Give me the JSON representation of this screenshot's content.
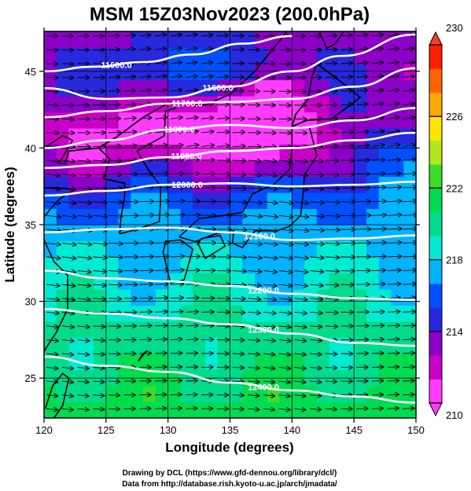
{
  "chart_data": {
    "type": "heatmap",
    "title": "MSM 15Z03Nov2023 (200.0hPa)",
    "xlabel": "Longitude (degrees)",
    "ylabel": "Latitude  (degrees)",
    "xlim": [
      120,
      150
    ],
    "ylim": [
      22.4,
      47.6
    ],
    "xticks": [
      120,
      125,
      130,
      135,
      140,
      145,
      150
    ],
    "yticks": [
      25,
      30,
      35,
      40,
      45
    ],
    "colorbar": {
      "range": [
        210,
        230
      ],
      "ticks": [
        210,
        214,
        218,
        222,
        226,
        230
      ],
      "colors": [
        "#ff3cff",
        "#c800c8",
        "#8c00c8",
        "#2828dc",
        "#0050ff",
        "#00b4ff",
        "#00ebd2",
        "#00dc8c",
        "#00dc50",
        "#3cdc28",
        "#b4e61e",
        "#ffe600",
        "#ffaa00",
        "#ff6400",
        "#ff1e00"
      ]
    },
    "contours": [
      {
        "label": "11600.0",
        "level": 11600,
        "points": [
          [
            120,
            45.0
          ],
          [
            124,
            45.3
          ],
          [
            128,
            45.6
          ],
          [
            132,
            46.1
          ],
          [
            136,
            46.8
          ],
          [
            140,
            47.3
          ]
        ]
      },
      {
        "label": "11600.0",
        "level": 11600,
        "points": [
          [
            120,
            43.9
          ],
          [
            125,
            43.2
          ],
          [
            130,
            43.3
          ],
          [
            135,
            44.0
          ],
          [
            140,
            45.0
          ],
          [
            144,
            46.0
          ],
          [
            150,
            47.4
          ]
        ]
      },
      {
        "label": "11700.0",
        "level": 11700,
        "points": [
          [
            120,
            42.0
          ],
          [
            125,
            42.4
          ],
          [
            130,
            42.9
          ],
          [
            135,
            43.0
          ],
          [
            140,
            43.2
          ],
          [
            145,
            44.0
          ],
          [
            150,
            45.2
          ]
        ]
      },
      {
        "label": "11800.0",
        "level": 11800,
        "points": [
          [
            120,
            40.0
          ],
          [
            125,
            40.5
          ],
          [
            130,
            41.2
          ],
          [
            135,
            41.5
          ],
          [
            140,
            41.3
          ],
          [
            145,
            41.8
          ],
          [
            150,
            42.6
          ]
        ]
      },
      {
        "label": "11900.0",
        "level": 11900,
        "points": [
          [
            120,
            38.7
          ],
          [
            125,
            38.9
          ],
          [
            130,
            39.4
          ],
          [
            135,
            39.8
          ],
          [
            140,
            40.0
          ],
          [
            145,
            40.5
          ],
          [
            150,
            41.0
          ]
        ]
      },
      {
        "label": "12000.0",
        "level": 12000,
        "points": [
          [
            120,
            36.9
          ],
          [
            125,
            37.2
          ],
          [
            130,
            37.6
          ],
          [
            135,
            37.7
          ],
          [
            140,
            37.5
          ],
          [
            145,
            37.6
          ],
          [
            150,
            37.8
          ]
        ]
      },
      {
        "label": "12100.0",
        "level": 12100,
        "points": [
          [
            120,
            34.5
          ],
          [
            125,
            34.7
          ],
          [
            130,
            34.8
          ],
          [
            135,
            34.5
          ],
          [
            140,
            34.0
          ],
          [
            145,
            34.1
          ],
          [
            150,
            34.3
          ]
        ]
      },
      {
        "label": "12200.0",
        "level": 12200,
        "points": [
          [
            120,
            32.0
          ],
          [
            125,
            31.5
          ],
          [
            130,
            31.3
          ],
          [
            135,
            31.0
          ],
          [
            140,
            30.5
          ],
          [
            145,
            30.2
          ],
          [
            150,
            30.1
          ]
        ]
      },
      {
        "label": "12300.0",
        "level": 12300,
        "points": [
          [
            120,
            29.5
          ],
          [
            125,
            29.2
          ],
          [
            130,
            28.9
          ],
          [
            135,
            28.5
          ],
          [
            140,
            27.9
          ],
          [
            145,
            27.3
          ],
          [
            150,
            27.1
          ]
        ]
      },
      {
        "label": "12400.0",
        "level": 12400,
        "points": [
          [
            120,
            26.4
          ],
          [
            125,
            25.8
          ],
          [
            130,
            25.4
          ],
          [
            135,
            24.7
          ],
          [
            140,
            24.2
          ],
          [
            145,
            23.8
          ],
          [
            150,
            23.4
          ]
        ]
      }
    ],
    "wind": "uniform vector arrows on grid, predominantly westerly",
    "grid": true
  },
  "credits": {
    "line1": "Drawing by DCL (https://www.gfd-dennou.org/library/dcl/)",
    "line2": "Data from http://database.rish.kyoto-u.ac.jp/arch/jmadata/"
  }
}
